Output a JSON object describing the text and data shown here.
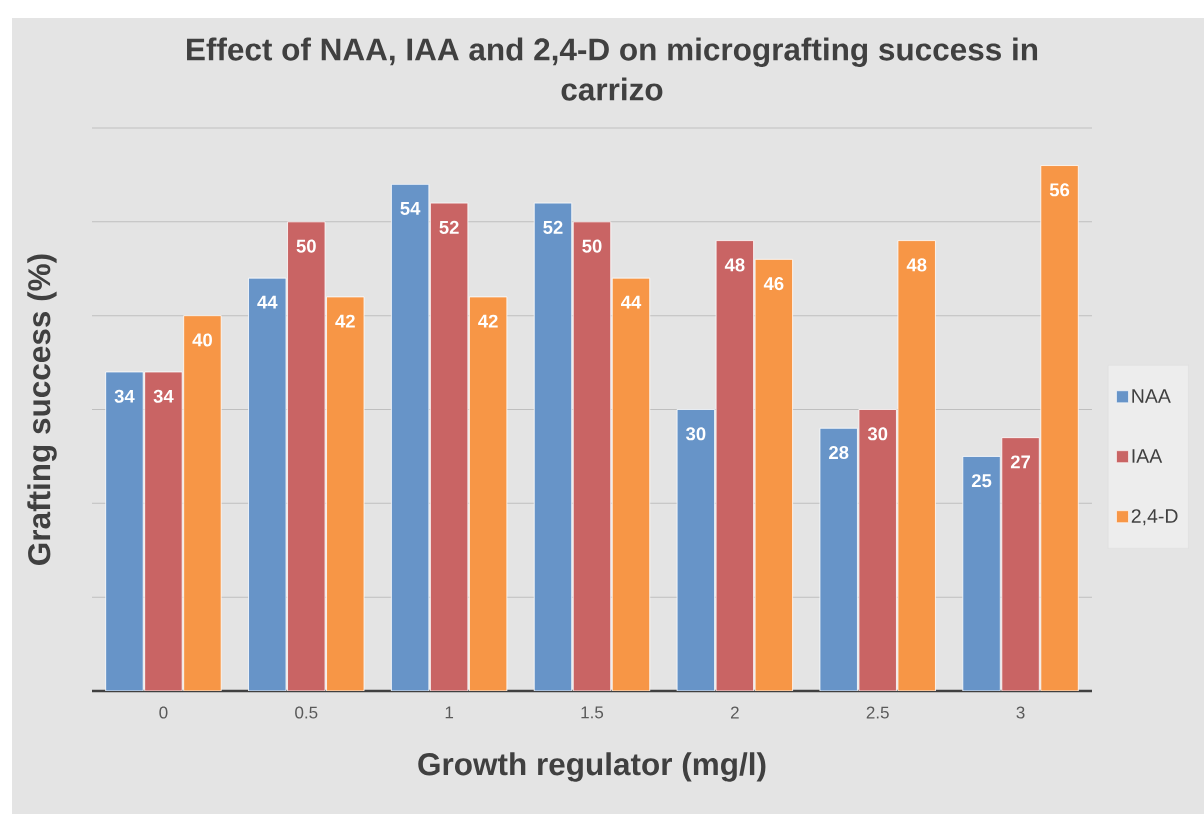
{
  "chart_data": {
    "type": "bar",
    "title": "Effect of NAA, IAA and 2,4-D on micrografting success in carrizo",
    "xlabel": "Growth regulator (mg/l)",
    "ylabel": "Grafting success (%)",
    "categories": [
      "0",
      "0.5",
      "1",
      "1.5",
      "2",
      "2.5",
      "3"
    ],
    "series": [
      {
        "name": "NAA",
        "color": "#6794c8",
        "values": [
          34,
          44,
          54,
          52,
          30,
          28,
          25
        ]
      },
      {
        "name": "IAA",
        "color": "#c96464",
        "values": [
          34,
          50,
          52,
          50,
          48,
          30,
          27
        ]
      },
      {
        "name": "2,4-D",
        "color": "#f79646",
        "values": [
          40,
          42,
          42,
          44,
          46,
          48,
          56
        ]
      }
    ],
    "ylim": [
      0,
      60
    ],
    "yticks": [
      {
        "value": 0,
        "label": null
      },
      {
        "value": 10,
        "label": null
      },
      {
        "value": 20,
        "label": null
      },
      {
        "value": 30,
        "label": null
      },
      {
        "value": 40,
        "label": null
      },
      {
        "value": 50,
        "label": null
      },
      {
        "value": 60,
        "label": null
      }
    ],
    "grid": "y",
    "tick_labels": "x",
    "legend": "right",
    "data_labels": true
  }
}
